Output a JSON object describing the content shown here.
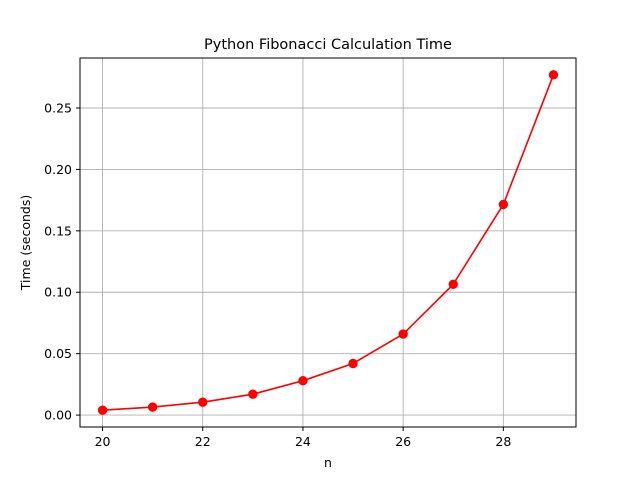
{
  "chart_data": {
    "type": "line",
    "title": "Python Fibonacci Calculation Time",
    "xlabel": "n",
    "ylabel": "Time (seconds)",
    "x": [
      20,
      21,
      22,
      23,
      24,
      25,
      26,
      27,
      28,
      29
    ],
    "series": [
      {
        "values": [
          0.004,
          0.0065,
          0.0105,
          0.017,
          0.028,
          0.042,
          0.066,
          0.1065,
          0.1715,
          0.277
        ],
        "color": "#ff0000",
        "marker": "circle"
      }
    ],
    "xlim": [
      19.55,
      29.45
    ],
    "ylim": [
      -0.0097,
      0.2907
    ],
    "xticks": [
      20,
      22,
      24,
      26,
      28
    ],
    "xtick_labels": [
      "20",
      "22",
      "24",
      "26",
      "28"
    ],
    "yticks": [
      0.0,
      0.05,
      0.1,
      0.15,
      0.2,
      0.25
    ],
    "ytick_labels": [
      "0.00",
      "0.05",
      "0.10",
      "0.15",
      "0.20",
      "0.25"
    ],
    "grid": true
  }
}
